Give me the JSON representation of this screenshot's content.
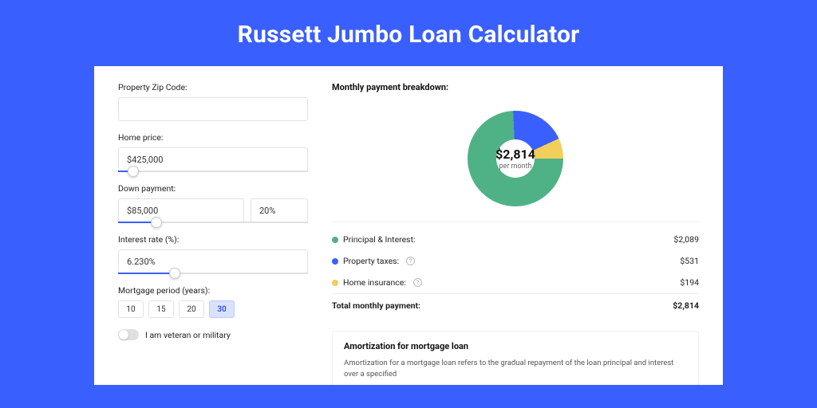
{
  "page": {
    "title": "Russett Jumbo Loan Calculator",
    "accent_color": "#3a5fff",
    "card_bg": "#ffffff"
  },
  "form": {
    "zip": {
      "label": "Property Zip Code:",
      "value": ""
    },
    "home_price": {
      "label": "Home price:",
      "value": "$425,000",
      "slider_pct": 8
    },
    "down_payment": {
      "label": "Down payment:",
      "amount": "$85,000",
      "pct": "20%",
      "slider_pct": 20
    },
    "interest_rate": {
      "label": "Interest rate (%):",
      "value": "6.230%",
      "slider_pct": 30
    },
    "mortgage_period": {
      "label": "Mortgage period (years):",
      "options": [
        "10",
        "15",
        "20",
        "30"
      ],
      "selected_index": 3
    },
    "veteran": {
      "label": "I am veteran or military",
      "checked": false
    }
  },
  "breakdown": {
    "heading": "Monthly payment breakdown:",
    "donut": {
      "amount": "$2,814",
      "sub": "per month",
      "slices": [
        {
          "label": "Principal & Interest",
          "value_num": 2089,
          "color": "#4fb287",
          "start_deg": 0
        },
        {
          "label": "Property taxes",
          "value_num": 531,
          "color": "#3a5fff",
          "start_deg": 267
        },
        {
          "label": "Home insurance",
          "value_num": 194,
          "color": "#f2cf5b",
          "start_deg": 335
        }
      ],
      "background": "#ffffff",
      "thickness_pct": 30
    },
    "legend": [
      {
        "dot": "#4fb287",
        "label": "Principal & Interest:",
        "value": "$2,089",
        "info": false
      },
      {
        "dot": "#3a5fff",
        "label": "Property taxes:",
        "value": "$531",
        "info": true
      },
      {
        "dot": "#f2cf5b",
        "label": "Home insurance:",
        "value": "$194",
        "info": true
      }
    ],
    "total": {
      "label": "Total monthly payment:",
      "value": "$2,814"
    }
  },
  "amortization": {
    "title": "Amortization for mortgage loan",
    "text": "Amortization for a mortgage loan refers to the gradual repayment of the loan principal and interest over a specified"
  }
}
